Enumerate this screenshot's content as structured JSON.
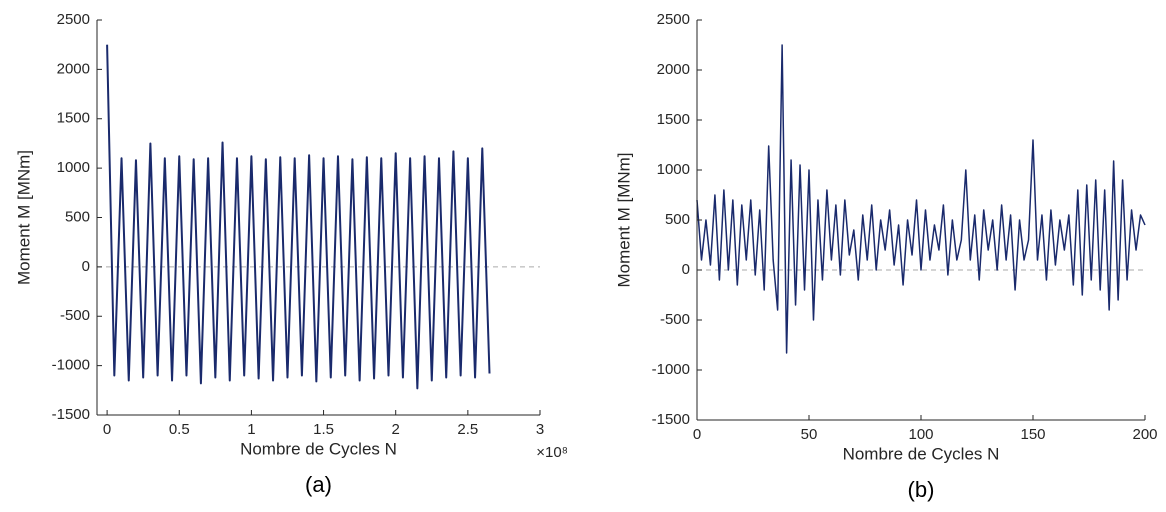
{
  "chart_data": [
    {
      "type": "line",
      "caption": "(a)",
      "xlabel": "Nombre de Cycles N",
      "ylabel": "Moment M [MNm]",
      "x_multiplier": "×10⁸",
      "xlim": [
        -0.07,
        3
      ],
      "xticks": [
        0,
        0.5,
        1,
        1.5,
        2,
        2.5,
        3
      ],
      "ylim": [
        -1500,
        2500
      ],
      "yticks": [
        -1500,
        -1000,
        -500,
        0,
        500,
        1000,
        1500,
        2000,
        2500
      ],
      "x": [
        0,
        0.05,
        0.1,
        0.15,
        0.2,
        0.25,
        0.3,
        0.35,
        0.4,
        0.45,
        0.5,
        0.55,
        0.6,
        0.65,
        0.7,
        0.75,
        0.8,
        0.85,
        0.9,
        0.95,
        1,
        1.05,
        1.1,
        1.15,
        1.2,
        1.25,
        1.3,
        1.35,
        1.4,
        1.45,
        1.5,
        1.55,
        1.6,
        1.65,
        1.7,
        1.75,
        1.8,
        1.85,
        1.9,
        1.95,
        2,
        2.05,
        2.1,
        2.15,
        2.2,
        2.25,
        2.3,
        2.35,
        2.4,
        2.45,
        2.5,
        2.55,
        2.6,
        2.65
      ],
      "series": [
        {
          "color": "#1a2a6c",
          "values": [
            2250,
            -1100,
            1100,
            -1150,
            1080,
            -1120,
            1250,
            -1100,
            1100,
            -1150,
            1120,
            -1100,
            1090,
            -1180,
            1100,
            -1120,
            1260,
            -1150,
            1100,
            -1100,
            1120,
            -1130,
            1090,
            -1150,
            1110,
            -1120,
            1100,
            -1100,
            1130,
            -1160,
            1100,
            -1120,
            1120,
            -1100,
            1090,
            -1150,
            1110,
            -1130,
            1100,
            -1100,
            1150,
            -1120,
            1100,
            -1230,
            1120,
            -1150,
            1100,
            -1120,
            1170,
            -1100,
            1100,
            -1120,
            1200,
            -1080
          ]
        }
      ]
    },
    {
      "type": "line",
      "caption": "(b)",
      "xlabel": "Nombre de Cycles N",
      "ylabel": "Moment M [MNm]",
      "xlim": [
        0,
        200
      ],
      "xticks": [
        0,
        50,
        100,
        150,
        200
      ],
      "ylim": [
        -1500,
        2500
      ],
      "yticks": [
        -1500,
        -1000,
        -500,
        0,
        500,
        1000,
        1500,
        2000,
        2500
      ],
      "x": [
        0,
        2,
        4,
        6,
        8,
        10,
        12,
        14,
        16,
        18,
        20,
        22,
        24,
        26,
        28,
        30,
        32,
        34,
        36,
        38,
        40,
        42,
        44,
        46,
        48,
        50,
        52,
        54,
        56,
        58,
        60,
        62,
        64,
        66,
        68,
        70,
        72,
        74,
        76,
        78,
        80,
        82,
        84,
        86,
        88,
        90,
        92,
        94,
        96,
        98,
        100,
        102,
        104,
        106,
        108,
        110,
        112,
        114,
        116,
        118,
        120,
        122,
        124,
        126,
        128,
        130,
        132,
        134,
        136,
        138,
        140,
        142,
        144,
        146,
        148,
        150,
        152,
        154,
        156,
        158,
        160,
        162,
        164,
        166,
        168,
        170,
        172,
        174,
        176,
        178,
        180,
        182,
        184,
        186,
        188,
        190,
        192,
        194,
        196,
        198,
        200
      ],
      "series": [
        {
          "color": "#1a2a6c",
          "values": [
            700,
            100,
            500,
            50,
            750,
            -100,
            800,
            0,
            700,
            -150,
            650,
            100,
            700,
            -50,
            600,
            -200,
            1240,
            100,
            -400,
            2250,
            -830,
            1100,
            -350,
            1050,
            -200,
            1000,
            -500,
            700,
            -100,
            800,
            100,
            650,
            -50,
            700,
            150,
            400,
            -100,
            550,
            100,
            650,
            0,
            500,
            200,
            600,
            50,
            450,
            -150,
            500,
            150,
            700,
            0,
            600,
            100,
            450,
            200,
            650,
            -50,
            500,
            100,
            300,
            1000,
            100,
            550,
            -100,
            600,
            200,
            500,
            0,
            650,
            100,
            550,
            -200,
            500,
            100,
            300,
            1300,
            100,
            550,
            -100,
            600,
            50,
            500,
            200,
            550,
            -150,
            800,
            -250,
            850,
            -100,
            900,
            -200,
            800,
            -400,
            1090,
            -300,
            900,
            -100,
            600,
            200,
            550,
            450
          ]
        }
      ]
    }
  ]
}
